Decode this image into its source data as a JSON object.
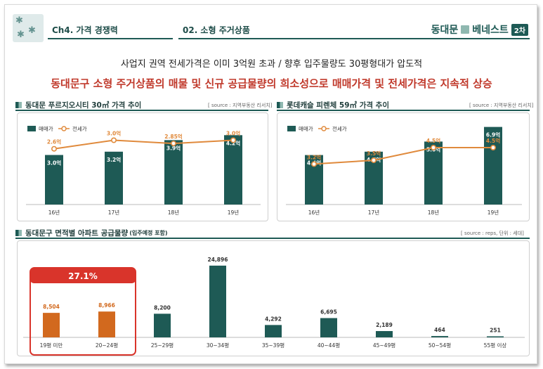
{
  "header": {
    "chapter": "Ch4. 가격 경쟁력",
    "section": "02. 소형 주거상품",
    "brand_name": "동대문",
    "brand_suffix": "베네스트",
    "brand_badge": "2차"
  },
  "subtitle": "사업지 권역 전세가격은 이미 3억원 초과 / 향후 입주물량도 30평형대가 압도적",
  "headline": "동대문구 소형 주거상품의 매물 및 신규 공급물량의 희소성으로 매매가격 및 전세가격은 지속적 상승",
  "colors": {
    "bar": "#1e5a55",
    "line": "#e08a3c",
    "highlight_bar": "#d2691e",
    "red": "#d9342b"
  },
  "chart_data": [
    {
      "type": "bar",
      "title": "동대문 푸르지오시티 30㎡ 가격 추이",
      "source": "[ source : 지역부동산 리서치]",
      "categories": [
        "16년",
        "17년",
        "18년",
        "19년"
      ],
      "series": [
        {
          "name": "매매가",
          "type": "bar",
          "values": [
            3.0,
            3.2,
            3.9,
            4.2
          ],
          "labels": [
            "3.0억",
            "3.2억",
            "3.9억",
            "4.2억"
          ]
        },
        {
          "name": "전세가",
          "type": "line",
          "values": [
            2.6,
            3.0,
            2.85,
            3.0
          ],
          "labels": [
            "2.6억",
            "3.0억",
            "2.85억",
            "3.0억"
          ]
        }
      ]
    },
    {
      "type": "bar",
      "title": "롯데캐슬 피렌체 59㎡ 가격 추이",
      "source": "[ source : 지역부동산 리서치]",
      "categories": [
        "16년",
        "17년",
        "18년",
        "19년"
      ],
      "series": [
        {
          "name": "매매가",
          "type": "bar",
          "values": [
            4.4,
            4.7,
            5.6,
            6.9
          ],
          "labels": [
            "4.4억",
            "4.7억",
            "5.6억",
            "6.9억"
          ]
        },
        {
          "name": "전세가",
          "type": "line",
          "values": [
            3.2,
            3.5,
            4.5,
            4.5
          ],
          "labels": [
            "3.2억",
            "3.5억",
            "4.5억",
            "4.5억"
          ]
        }
      ]
    },
    {
      "type": "bar",
      "title": "동대문구 면적별 아파트 공급물량",
      "title_note": "(입주예정 포함)",
      "source": "[ source : reps, 단위 : 세대]",
      "categories": [
        "19평 미만",
        "20~24평",
        "25~29평",
        "30~34평",
        "35~39평",
        "40~44평",
        "45~49평",
        "50~54평",
        "55평 이상"
      ],
      "values": [
        8504,
        8966,
        8200,
        24896,
        4292,
        6695,
        2189,
        464,
        251
      ],
      "labels": [
        "8,504",
        "8,966",
        "8,200",
        "24,896",
        "4,292",
        "6,695",
        "2,189",
        "464",
        "251"
      ],
      "highlight": {
        "categories": [
          "19평 미만",
          "20~24평"
        ],
        "label": "27.1%"
      }
    }
  ]
}
